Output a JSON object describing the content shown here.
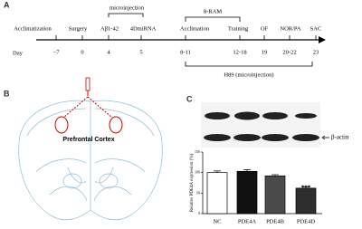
{
  "panel_a": {
    "letter": "A",
    "top_labels": [
      "microinjection",
      "8-RAM"
    ],
    "events": [
      "Acclimatization",
      "Surgery",
      "Aβ1-42",
      "4DmiRNA",
      "Acclimation",
      "Training",
      "OF",
      "NOR/PA",
      "SAC"
    ],
    "day_label": "Day",
    "days": [
      "−7",
      "0",
      "4",
      "5",
      "8-11",
      "12-18",
      "19",
      "20-22",
      "23"
    ],
    "bracket_label": "H89 (microinjection)"
  },
  "panel_b": {
    "letter": "B",
    "region_label": "Prefrontal Cortex"
  },
  "panel_c": {
    "letter": "C",
    "blot_label": "β-actin"
  },
  "chart_data": {
    "type": "bar",
    "ylabel": "Relative PDE4A expression (%)",
    "categories": [
      "NC",
      "PDE4A",
      "PDE4B",
      "PDE4D"
    ],
    "values": [
      100,
      103,
      92,
      62
    ],
    "errors": [
      4,
      4,
      3,
      3
    ],
    "colors": [
      "#ffffff",
      "#111111",
      "#4a4a4a",
      "#2e2e2e"
    ],
    "ylim": [
      0,
      150
    ],
    "yticks": [
      0,
      50,
      100,
      150
    ],
    "annotation": "***"
  }
}
